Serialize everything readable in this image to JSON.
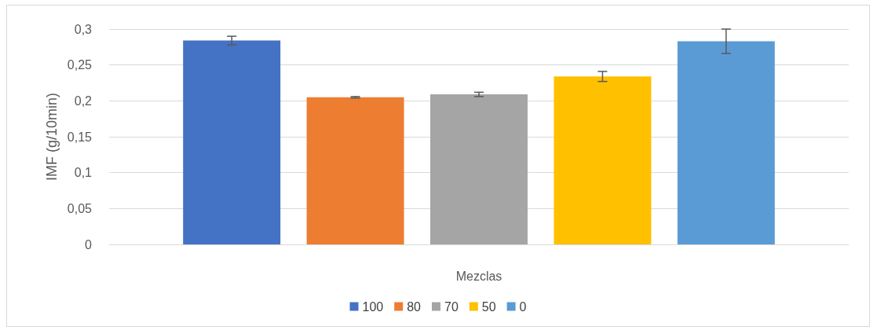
{
  "chart_data": {
    "type": "bar",
    "ylabel": "IMF (g/10min)",
    "xlabel": "Mezclas",
    "categories": [
      null
    ],
    "series": [
      {
        "name": "100",
        "color": "#4472c4",
        "values": [
          0.284
        ],
        "errors": [
          0.006
        ]
      },
      {
        "name": "80",
        "color": "#ed7d31",
        "values": [
          0.205
        ],
        "errors": [
          0.001
        ]
      },
      {
        "name": "70",
        "color": "#a5a5a5",
        "values": [
          0.209
        ],
        "errors": [
          0.003
        ]
      },
      {
        "name": "50",
        "color": "#ffc000",
        "values": [
          0.234
        ],
        "errors": [
          0.007
        ]
      },
      {
        "name": "0",
        "color": "#5b9bd5",
        "values": [
          0.283
        ],
        "errors": [
          0.017
        ]
      }
    ],
    "ylim": [
      0,
      0.3
    ],
    "yticks": [
      {
        "value": 0,
        "label": "0"
      },
      {
        "value": 0.05,
        "label": "0,05"
      },
      {
        "value": 0.1,
        "label": "0,1"
      },
      {
        "value": 0.15,
        "label": "0,15"
      },
      {
        "value": 0.2,
        "label": "0,2"
      },
      {
        "value": 0.25,
        "label": "0,25"
      },
      {
        "value": 0.3,
        "label": "0,3"
      }
    ],
    "grid": "y",
    "legend": "bottom"
  }
}
